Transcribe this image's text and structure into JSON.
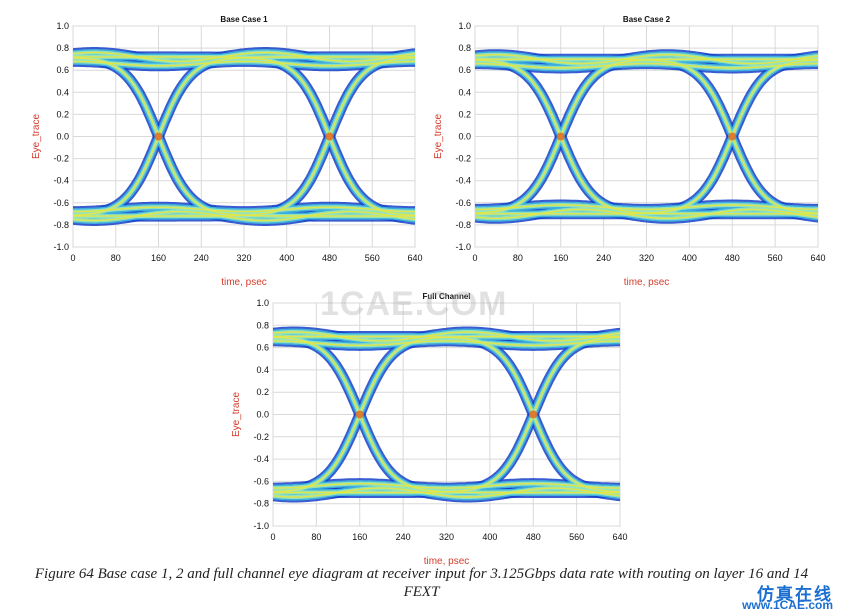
{
  "chart_data": [
    {
      "type": "eye_diagram",
      "title": "Base Case 1",
      "xlabel": "time, psec",
      "ylabel": "Eye_trace",
      "xlim": [
        0,
        640
      ],
      "ylim": [
        -1.0,
        1.0
      ],
      "xticks": [
        0,
        80,
        160,
        240,
        320,
        400,
        480,
        560,
        640
      ],
      "yticks": [
        -1.0,
        -0.8,
        -0.6,
        -0.4,
        -0.2,
        0.0,
        0.2,
        0.4,
        0.6,
        0.8,
        1.0
      ],
      "grid": true,
      "unit_interval_ps": 320,
      "crossing_points": [
        [
          160,
          0.0
        ],
        [
          480,
          0.0
        ]
      ],
      "high_level": 0.72,
      "low_level": -0.72,
      "eye_height": 1.3
    },
    {
      "type": "eye_diagram",
      "title": "Base Case 2",
      "xlabel": "time, psec",
      "ylabel": "Eye_trace",
      "xlim": [
        0,
        640
      ],
      "ylim": [
        -1.0,
        1.0
      ],
      "xticks": [
        0,
        80,
        160,
        240,
        320,
        400,
        480,
        560,
        640
      ],
      "yticks": [
        -1.0,
        -0.8,
        -0.6,
        -0.4,
        -0.2,
        0.0,
        0.2,
        0.4,
        0.6,
        0.8,
        1.0
      ],
      "grid": true,
      "unit_interval_ps": 320,
      "crossing_points": [
        [
          160,
          0.0
        ],
        [
          480,
          0.0
        ]
      ],
      "high_level": 0.7,
      "low_level": -0.7,
      "eye_height": 1.25
    },
    {
      "type": "eye_diagram",
      "title": "Full Channel",
      "xlabel": "time, psec",
      "ylabel": "Eye_trace",
      "xlim": [
        0,
        640
      ],
      "ylim": [
        -1.0,
        1.0
      ],
      "xticks": [
        0,
        80,
        160,
        240,
        320,
        400,
        480,
        560,
        640
      ],
      "yticks": [
        -1.0,
        -0.8,
        -0.6,
        -0.4,
        -0.2,
        0.0,
        0.2,
        0.4,
        0.6,
        0.8,
        1.0
      ],
      "grid": true,
      "unit_interval_ps": 320,
      "crossing_points": [
        [
          160,
          0.0
        ],
        [
          480,
          0.0
        ]
      ],
      "high_level": 0.7,
      "low_level": -0.7,
      "eye_height": 1.2
    }
  ],
  "caption": {
    "line1": "Figure 64 Base case 1, 2 and full channel eye diagram at receiver input for 3.125Gbps data rate with routing on layer 16 and 14",
    "line2": "FEXT"
  },
  "watermarks": {
    "center": "1CAE.COM",
    "site_cn": "仿真在线",
    "site_url": "www.1CAE.com"
  },
  "colors": {
    "title": "#111111",
    "axis_label": "#d43c2c",
    "grid": "#d9d9d9",
    "trace_outer": "#1640c8",
    "trace_mid": "#3fb6e0",
    "trace_inner": "#9be7b7",
    "trace_core": "#e8e640"
  }
}
